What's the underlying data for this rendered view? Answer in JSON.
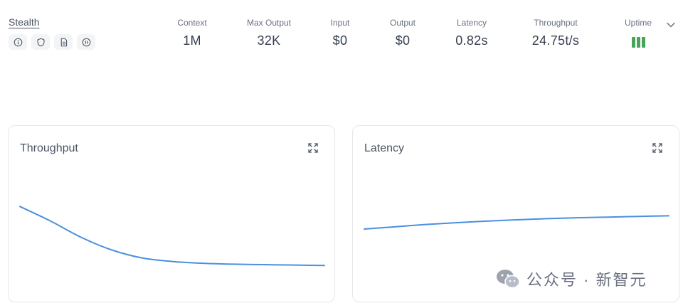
{
  "provider": {
    "name": "Stealth",
    "badges": [
      "info-icon",
      "shield-icon",
      "document-icon",
      "pause-icon"
    ]
  },
  "stats": [
    {
      "label": "Context",
      "value": "1M"
    },
    {
      "label": "Max Output",
      "value": "32K"
    },
    {
      "label": "Input",
      "value": "$0"
    },
    {
      "label": "Output",
      "value": "$0"
    },
    {
      "label": "Latency",
      "value": "0.82s"
    },
    {
      "label": "Throughput",
      "value": "24.75t/s"
    },
    {
      "label": "Uptime",
      "bars": 3
    }
  ],
  "colors": {
    "uptime": "#4aa35b",
    "line": "#4a8fe0"
  },
  "watermark": "公众号 · 新智元",
  "chart_data": [
    {
      "type": "line",
      "title": "Throughput",
      "xlabel": "",
      "ylabel": "",
      "x": [
        0,
        1,
        2,
        3,
        4,
        5,
        6,
        7,
        8,
        9,
        10
      ],
      "values": [
        100,
        84,
        66,
        52,
        43,
        39,
        37,
        36,
        35.5,
        35,
        34.5
      ],
      "ylim": [
        0,
        150
      ],
      "grid": false
    },
    {
      "type": "line",
      "title": "Latency",
      "xlabel": "",
      "ylabel": "",
      "x": [
        0,
        1,
        2,
        3,
        4,
        5,
        6,
        7,
        8,
        9,
        10
      ],
      "values": [
        60,
        62,
        64,
        65.6,
        67,
        68.2,
        69.2,
        70,
        70.6,
        71.2,
        71.8
      ],
      "ylim": [
        0,
        120
      ],
      "grid": false
    }
  ]
}
